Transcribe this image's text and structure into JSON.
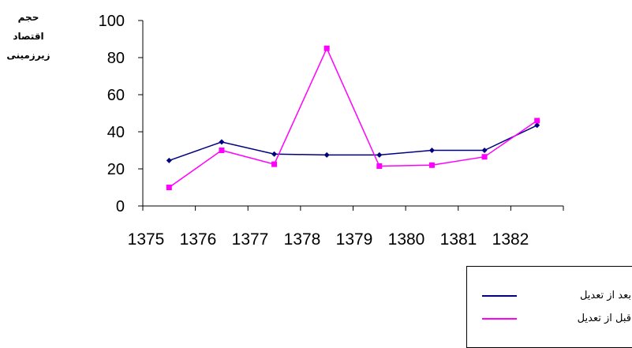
{
  "chart_data": {
    "type": "line",
    "ylabel": [
      "حجم اقتصاد",
      "زیرزمینی"
    ],
    "xlabel": "",
    "title": "",
    "ylim": [
      0,
      100
    ],
    "yticks": [
      0,
      20,
      40,
      60,
      80,
      100
    ],
    "categories": [
      "1375",
      "1376",
      "1377",
      "1378",
      "1379",
      "1380",
      "1381",
      "1382"
    ],
    "series": [
      {
        "name": "بعد از تعدیل",
        "color": "#000080",
        "marker": "diamond",
        "values": [
          24.5,
          34.5,
          28,
          27.5,
          27.5,
          30,
          30,
          43.5
        ]
      },
      {
        "name": "قبل از تعدیل",
        "color": "#ff00ff",
        "marker": "square",
        "values": [
          10,
          30,
          22.5,
          85,
          21.5,
          22,
          26.5,
          46
        ]
      }
    ],
    "legend_position": "bottom-right",
    "grid": false
  }
}
